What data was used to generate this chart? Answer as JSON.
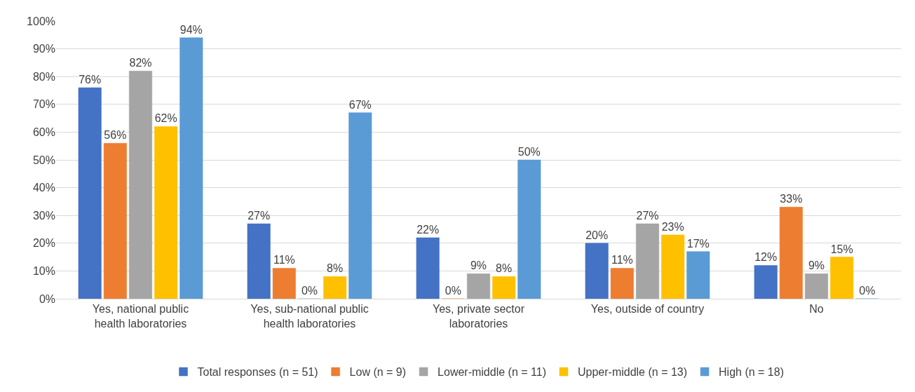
{
  "chart_data": {
    "type": "bar",
    "categories": [
      "Yes, national public health laboratories",
      "Yes, sub-national public health laboratories",
      "Yes, private sector laboratories",
      "Yes, outside of country",
      "No"
    ],
    "series": [
      {
        "name": "Total responses (n = 51)",
        "color": "#4472c4",
        "values": [
          76,
          27,
          22,
          20,
          12
        ],
        "value_labels": [
          "76%",
          "27%",
          "22%",
          "20%",
          "12%"
        ]
      },
      {
        "name": "Low (n = 9)",
        "color": "#ed7d31",
        "values": [
          56,
          11,
          0,
          11,
          33
        ],
        "value_labels": [
          "56%",
          "11%",
          "0%",
          "11%",
          "33%"
        ]
      },
      {
        "name": "Lower-middle (n = 11)",
        "color": "#a5a5a5",
        "values": [
          82,
          0,
          9,
          27,
          9
        ],
        "value_labels": [
          "82%",
          "0%",
          "9%",
          "27%",
          "9%"
        ]
      },
      {
        "name": "Upper-middle (n = 13)",
        "color": "#ffc000",
        "values": [
          62,
          8,
          8,
          23,
          15
        ],
        "value_labels": [
          "62%",
          "8%",
          "8%",
          "23%",
          "15%"
        ]
      },
      {
        "name": "High (n = 18)",
        "color": "#5b9bd5",
        "values": [
          94,
          67,
          50,
          17,
          0
        ],
        "value_labels": [
          "94%",
          "67%",
          "50%",
          "17%",
          "0%"
        ]
      }
    ],
    "ylim": [
      0,
      100
    ],
    "yticks": [
      {
        "value": 0,
        "label": "0%"
      },
      {
        "value": 10,
        "label": "10%"
      },
      {
        "value": 20,
        "label": "20%"
      },
      {
        "value": 30,
        "label": "30%"
      },
      {
        "value": 40,
        "label": "40%"
      },
      {
        "value": 50,
        "label": "50%"
      },
      {
        "value": 60,
        "label": "60%"
      },
      {
        "value": 70,
        "label": "70%"
      },
      {
        "value": 80,
        "label": "80%"
      },
      {
        "value": 90,
        "label": "90%"
      },
      {
        "value": 100,
        "label": "100%"
      }
    ],
    "grid": "y",
    "legend": "bottom"
  }
}
